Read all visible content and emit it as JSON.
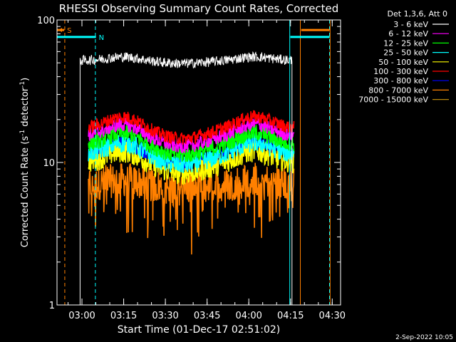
{
  "chart_data": {
    "type": "line",
    "title": "RHESSI Observing Summary Count Rates, Corrected",
    "xlabel": "Start Time (01-Dec-17 02:51:02)",
    "ylabel": "Corrected Count Rate (s⁻¹ detector⁻¹)",
    "ylabel_parts": [
      "Corrected Count Rate (s",
      "-1",
      " detector",
      "-1",
      ")"
    ],
    "y_scale": "log",
    "ylim": [
      1,
      100
    ],
    "y_ticks": [
      {
        "value": 1,
        "label": "1"
      },
      {
        "value": 10,
        "label": "10"
      },
      {
        "value": 100,
        "label": "100"
      }
    ],
    "x_unit": "minutes after 02:51:02",
    "xlim": [
      0,
      101.97
    ],
    "x_ticks": [
      {
        "value": 8.97,
        "label": "03:00"
      },
      {
        "value": 23.97,
        "label": "03:15"
      },
      {
        "value": 38.97,
        "label": "03:30"
      },
      {
        "value": 53.97,
        "label": "03:45"
      },
      {
        "value": 68.97,
        "label": "04:00"
      },
      {
        "value": 83.97,
        "label": "04:15"
      },
      {
        "value": 98.97,
        "label": "04:30"
      }
    ],
    "legend_header": "Det 1,3,6, Att 0",
    "legend_position": "right",
    "series": [
      {
        "name": "3 - 6 keV",
        "color": "#ffffff",
        "level": 52,
        "hump": 0.06,
        "noise": 0.035,
        "data_start": 8.3,
        "data_end": 84.5
      },
      {
        "name": "6 - 12 keV",
        "color": "#ff00ff",
        "level": 15.5,
        "hump": 0.2,
        "noise": 0.05,
        "data_start": 11.3,
        "data_end": 85.2
      },
      {
        "name": "12 - 25 keV",
        "color": "#00ff00",
        "level": 13.5,
        "hump": 0.2,
        "noise": 0.06,
        "data_start": 11.3,
        "data_end": 85.2
      },
      {
        "name": "25 - 50 keV",
        "color": "#00ffff",
        "level": 11.5,
        "hump": 0.2,
        "noise": 0.07,
        "data_start": 11.3,
        "data_end": 85.2
      },
      {
        "name": "50 - 100 keV",
        "color": "#ffff00",
        "level": 10,
        "hump": 0.2,
        "noise": 0.08,
        "data_start": 11.3,
        "data_end": 85.2
      },
      {
        "name": "100 - 300 keV",
        "color": "#ff0000",
        "level": 17.5,
        "hump": 0.2,
        "noise": 0.045,
        "data_start": 11.3,
        "data_end": 85.2
      },
      {
        "name": "300 - 800 keV",
        "color": "#0000ff",
        "level": 11.5,
        "hump": 0.2,
        "noise": 0.05,
        "data_start": 11.3,
        "data_end": 85.2
      },
      {
        "name": "800 - 7000 keV",
        "color": "#ff8000",
        "level": 7,
        "hump": 0.08,
        "noise": 0.12,
        "data_start": 11.3,
        "data_end": 85.2
      },
      {
        "name": "7000 - 15000 keV",
        "color": "#b8860b",
        "level": 0,
        "hump": 0,
        "noise": 0,
        "data_start": 0,
        "data_end": 0
      }
    ],
    "flags": [
      {
        "label": "S",
        "color": "#ff8000",
        "start": 0,
        "end": 2.6,
        "y": 85
      },
      {
        "label": "N",
        "color": "#00ffff",
        "start": 0,
        "end": 14,
        "y": 76
      },
      {
        "label": "",
        "color": "#ff8000",
        "start": 87.8,
        "end": 98,
        "y": 85
      },
      {
        "label": "",
        "color": "#00ffff",
        "start": 83.9,
        "end": 98,
        "y": 76
      }
    ],
    "vlines": [
      {
        "x": 2.8,
        "color": "#ff8000",
        "style": "dashed"
      },
      {
        "x": 13.8,
        "color": "#00ffff",
        "style": "dashed"
      },
      {
        "x": 83.7,
        "color": "#00ffff",
        "style": "solid"
      },
      {
        "x": 87.5,
        "color": "#ff8000",
        "style": "solid"
      },
      {
        "x": 98.2,
        "color": "#ff8000",
        "style": "solid"
      },
      {
        "x": 98.0,
        "color": "#00ffff",
        "style": "dashed"
      }
    ],
    "timestamp": "2-Sep-2022 10:05"
  }
}
